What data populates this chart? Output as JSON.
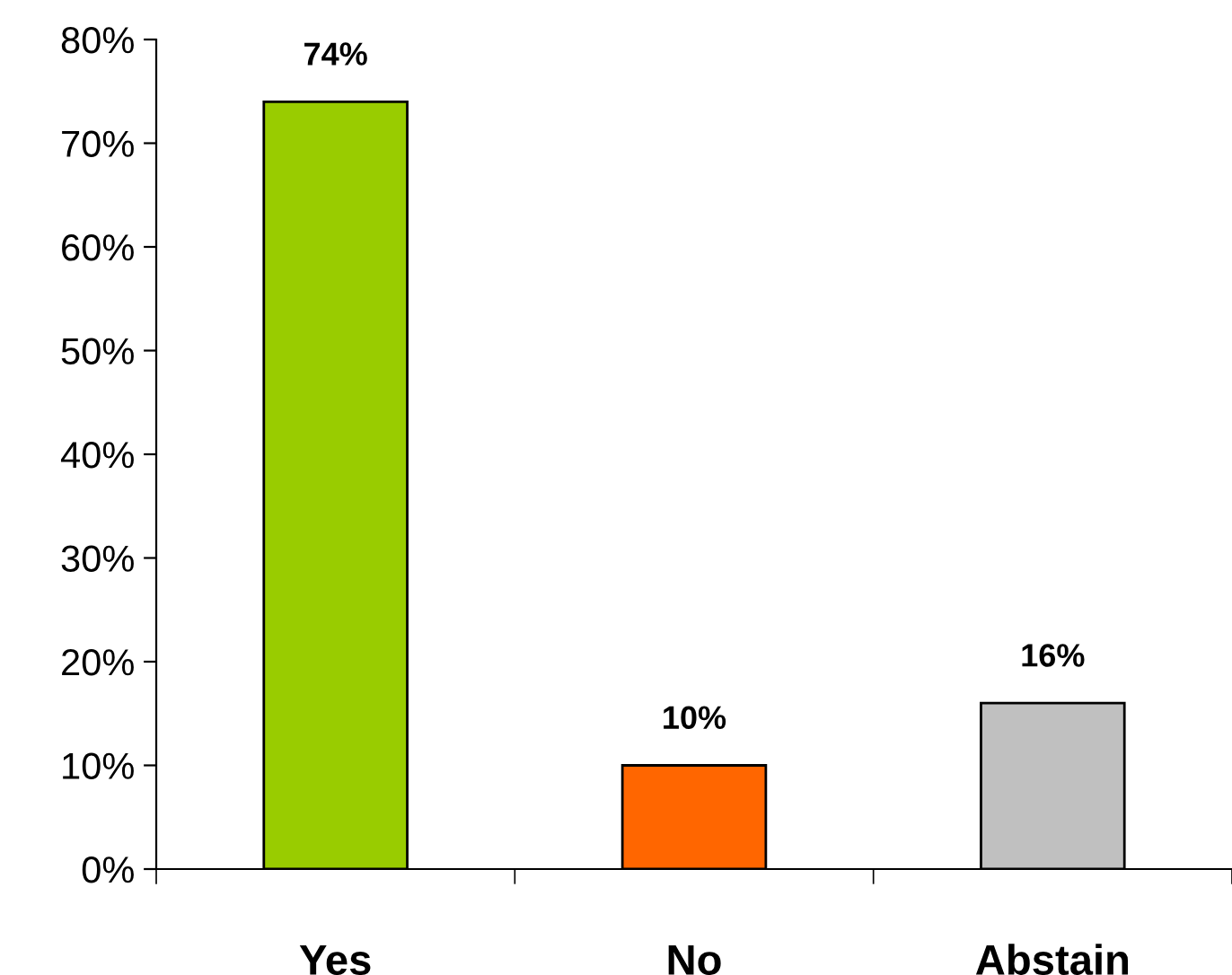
{
  "chart_data": {
    "type": "bar",
    "categories": [
      "Yes",
      "No",
      "Abstain"
    ],
    "values": [
      74,
      10,
      16
    ],
    "colors": [
      "#99cc00",
      "#ff6600",
      "#c0c0c0"
    ],
    "value_labels": [
      "74%",
      "10%",
      "16%"
    ],
    "ylim": [
      0,
      80
    ],
    "yticks": [
      {
        "value": 0,
        "label": "0%"
      },
      {
        "value": 10,
        "label": "10%"
      },
      {
        "value": 20,
        "label": "20%"
      },
      {
        "value": 30,
        "label": "30%"
      },
      {
        "value": 40,
        "label": "40%"
      },
      {
        "value": 50,
        "label": "50%"
      },
      {
        "value": 60,
        "label": "60%"
      },
      {
        "value": 70,
        "label": "70%"
      },
      {
        "value": 80,
        "label": "80%"
      }
    ],
    "grid": false,
    "legend": false
  }
}
